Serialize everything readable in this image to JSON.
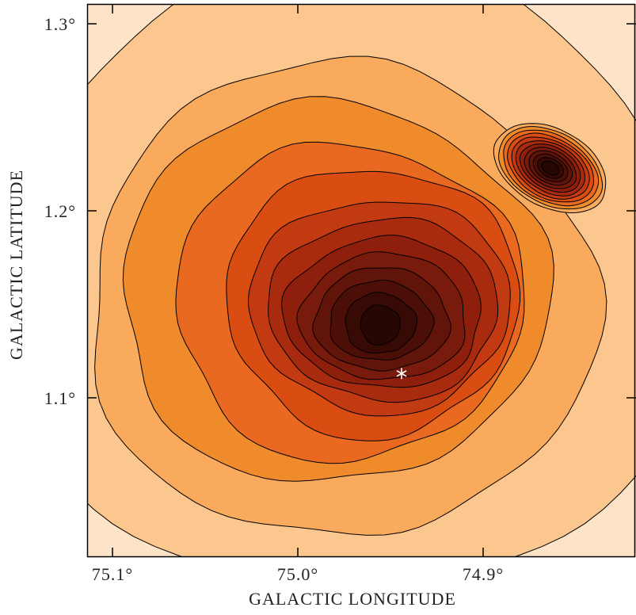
{
  "chart_data": {
    "type": "contour",
    "xlabel": "GALACTIC LONGITUDE",
    "ylabel": "GALACTIC LATITUDE",
    "xlim": [
      75.1137,
      74.8175
    ],
    "ylim": [
      1.0148,
      1.3106
    ],
    "xticks": [
      {
        "value": 75.1,
        "label": "75.1°"
      },
      {
        "value": 75.0,
        "label": "75.0°"
      },
      {
        "value": 74.9,
        "label": "74.9°"
      }
    ],
    "yticks": [
      {
        "value": 1.1,
        "label": "1.1°"
      },
      {
        "value": 1.2,
        "label": "1.2°"
      },
      {
        "value": 1.3,
        "label": "1.3°"
      }
    ],
    "marker": {
      "x": 74.944,
      "y": 1.113,
      "color": "#ffffff"
    }
  }
}
